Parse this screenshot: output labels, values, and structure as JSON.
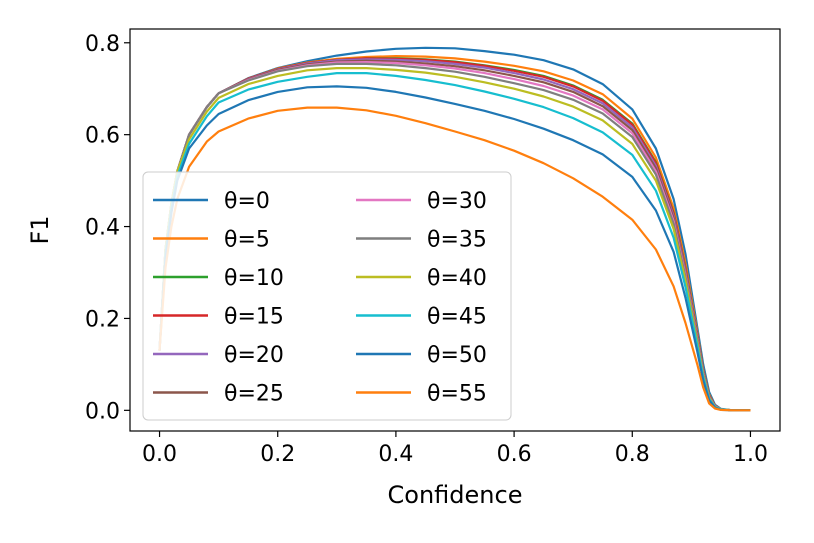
{
  "chart_data": {
    "type": "line",
    "title": "",
    "xlabel": "Confidence",
    "ylabel": "F1",
    "xlim": [
      -0.05,
      1.05
    ],
    "ylim": [
      -0.045,
      0.83
    ],
    "xticks": [
      0.0,
      0.2,
      0.4,
      0.6,
      0.8,
      1.0
    ],
    "xtick_labels": [
      "0.0",
      "0.2",
      "0.4",
      "0.6",
      "0.8",
      "1.0"
    ],
    "yticks": [
      0.0,
      0.2,
      0.4,
      0.6,
      0.8
    ],
    "ytick_labels": [
      "0.0",
      "0.2",
      "0.4",
      "0.6",
      "0.8"
    ],
    "grid": false,
    "legend_position": "center-left",
    "legend_columns": 2,
    "x": [
      0.0,
      0.01,
      0.02,
      0.03,
      0.05,
      0.08,
      0.1,
      0.15,
      0.2,
      0.25,
      0.3,
      0.35,
      0.4,
      0.45,
      0.5,
      0.55,
      0.6,
      0.65,
      0.7,
      0.75,
      0.8,
      0.84,
      0.87,
      0.89,
      0.91,
      0.92,
      0.93,
      0.94,
      0.95,
      0.97,
      1.0
    ],
    "series": [
      {
        "name": "θ=0",
        "color": "#1f77b4",
        "values": [
          0.13,
          0.35,
          0.45,
          0.52,
          0.6,
          0.66,
          0.69,
          0.723,
          0.745,
          0.76,
          0.772,
          0.781,
          0.787,
          0.789,
          0.788,
          0.782,
          0.774,
          0.762,
          0.742,
          0.71,
          0.655,
          0.57,
          0.46,
          0.34,
          0.18,
          0.1,
          0.04,
          0.012,
          0.003,
          0.0,
          0.0
        ]
      },
      {
        "name": "θ=5",
        "color": "#ff7f0e",
        "values": [
          0.13,
          0.35,
          0.45,
          0.52,
          0.6,
          0.66,
          0.69,
          0.722,
          0.744,
          0.757,
          0.765,
          0.769,
          0.771,
          0.77,
          0.766,
          0.759,
          0.75,
          0.738,
          0.718,
          0.688,
          0.635,
          0.55,
          0.44,
          0.32,
          0.17,
          0.09,
          0.035,
          0.01,
          0.002,
          0.0,
          0.0
        ]
      },
      {
        "name": "θ=10",
        "color": "#2ca02c",
        "values": [
          0.13,
          0.35,
          0.45,
          0.52,
          0.6,
          0.66,
          0.69,
          0.722,
          0.743,
          0.756,
          0.763,
          0.766,
          0.766,
          0.764,
          0.759,
          0.751,
          0.741,
          0.728,
          0.707,
          0.676,
          0.624,
          0.54,
          0.43,
          0.31,
          0.165,
          0.088,
          0.033,
          0.01,
          0.002,
          0.0,
          0.0
        ]
      },
      {
        "name": "θ=15",
        "color": "#d62728",
        "values": [
          0.13,
          0.35,
          0.45,
          0.52,
          0.6,
          0.66,
          0.69,
          0.722,
          0.743,
          0.756,
          0.763,
          0.766,
          0.765,
          0.763,
          0.758,
          0.75,
          0.739,
          0.726,
          0.705,
          0.674,
          0.622,
          0.538,
          0.428,
          0.308,
          0.164,
          0.087,
          0.032,
          0.01,
          0.002,
          0.0,
          0.0
        ]
      },
      {
        "name": "θ=20",
        "color": "#9467bd",
        "values": [
          0.13,
          0.35,
          0.45,
          0.52,
          0.6,
          0.66,
          0.69,
          0.721,
          0.742,
          0.755,
          0.762,
          0.764,
          0.763,
          0.76,
          0.754,
          0.746,
          0.734,
          0.72,
          0.699,
          0.668,
          0.616,
          0.532,
          0.423,
          0.304,
          0.161,
          0.085,
          0.031,
          0.009,
          0.002,
          0.0,
          0.0
        ]
      },
      {
        "name": "θ=25",
        "color": "#8c564b",
        "values": [
          0.13,
          0.35,
          0.45,
          0.52,
          0.6,
          0.66,
          0.69,
          0.72,
          0.741,
          0.753,
          0.759,
          0.761,
          0.759,
          0.755,
          0.749,
          0.74,
          0.728,
          0.714,
          0.693,
          0.662,
          0.61,
          0.527,
          0.418,
          0.3,
          0.158,
          0.083,
          0.03,
          0.009,
          0.002,
          0.0,
          0.0
        ]
      },
      {
        "name": "θ=30",
        "color": "#e377c2",
        "values": [
          0.13,
          0.35,
          0.45,
          0.52,
          0.6,
          0.66,
          0.69,
          0.719,
          0.739,
          0.751,
          0.757,
          0.758,
          0.756,
          0.751,
          0.744,
          0.734,
          0.721,
          0.706,
          0.685,
          0.655,
          0.603,
          0.52,
          0.412,
          0.295,
          0.155,
          0.081,
          0.029,
          0.009,
          0.002,
          0.0,
          0.0
        ]
      },
      {
        "name": "θ=35",
        "color": "#7f7f7f",
        "values": [
          0.13,
          0.35,
          0.45,
          0.52,
          0.6,
          0.66,
          0.69,
          0.718,
          0.738,
          0.749,
          0.754,
          0.754,
          0.751,
          0.745,
          0.737,
          0.726,
          0.712,
          0.697,
          0.676,
          0.646,
          0.595,
          0.513,
          0.406,
          0.29,
          0.152,
          0.079,
          0.028,
          0.008,
          0.002,
          0.0,
          0.0
        ]
      },
      {
        "name": "θ=40",
        "color": "#bcbd22",
        "values": [
          0.13,
          0.35,
          0.45,
          0.52,
          0.59,
          0.65,
          0.68,
          0.71,
          0.728,
          0.74,
          0.745,
          0.745,
          0.741,
          0.735,
          0.726,
          0.714,
          0.7,
          0.683,
          0.661,
          0.631,
          0.58,
          0.5,
          0.395,
          0.282,
          0.147,
          0.076,
          0.027,
          0.008,
          0.002,
          0.0,
          0.0
        ]
      },
      {
        "name": "θ=45",
        "color": "#17becf",
        "values": [
          0.13,
          0.34,
          0.44,
          0.51,
          0.58,
          0.64,
          0.67,
          0.698,
          0.715,
          0.726,
          0.734,
          0.734,
          0.728,
          0.719,
          0.708,
          0.694,
          0.678,
          0.66,
          0.636,
          0.605,
          0.556,
          0.478,
          0.376,
          0.268,
          0.14,
          0.072,
          0.025,
          0.007,
          0.002,
          0.0,
          0.0
        ]
      },
      {
        "name": "θ=50",
        "color": "#1f77b4",
        "values": [
          0.13,
          0.33,
          0.43,
          0.5,
          0.57,
          0.62,
          0.645,
          0.675,
          0.693,
          0.703,
          0.705,
          0.702,
          0.693,
          0.681,
          0.667,
          0.652,
          0.634,
          0.613,
          0.588,
          0.557,
          0.508,
          0.435,
          0.345,
          0.245,
          0.128,
          0.065,
          0.022,
          0.006,
          0.001,
          0.0,
          0.0
        ]
      },
      {
        "name": "θ=55",
        "color": "#ff7f0e",
        "values": [
          0.13,
          0.31,
          0.4,
          0.46,
          0.53,
          0.585,
          0.607,
          0.635,
          0.652,
          0.659,
          0.659,
          0.653,
          0.641,
          0.625,
          0.607,
          0.588,
          0.565,
          0.538,
          0.505,
          0.465,
          0.415,
          0.35,
          0.27,
          0.19,
          0.1,
          0.05,
          0.015,
          0.004,
          0.001,
          0.0,
          0.0
        ]
      }
    ]
  }
}
